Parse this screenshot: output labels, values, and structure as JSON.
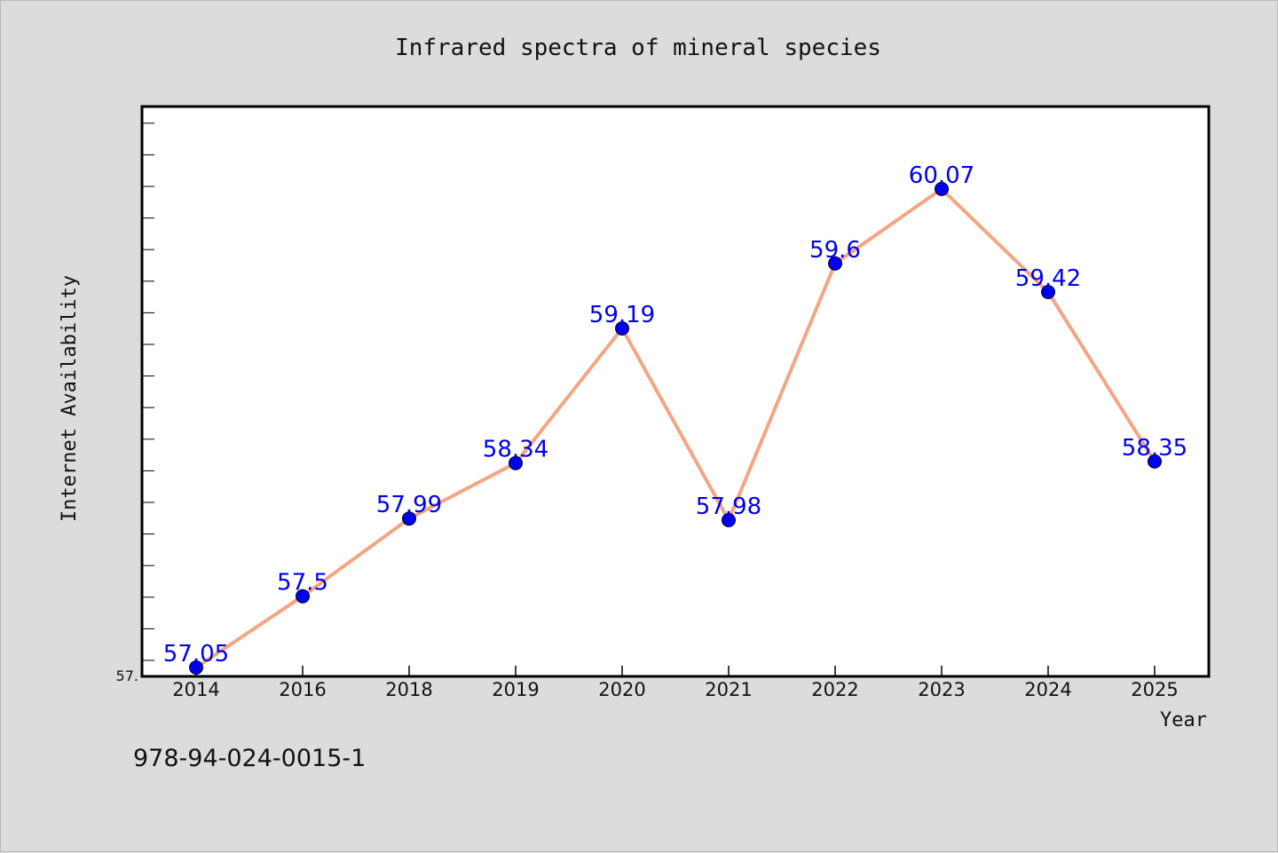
{
  "chart_data": {
    "type": "line",
    "title": "Infrared spectra of mineral species",
    "xlabel": "Year",
    "ylabel": "Internet Availability",
    "categories": [
      "2014",
      "2016",
      "2018",
      "2019",
      "2020",
      "2021",
      "2022",
      "2023",
      "2024",
      "2025"
    ],
    "series": [
      {
        "values": [
          57.05,
          57.5,
          57.99,
          58.34,
          59.19,
          57.98,
          59.6,
          60.07,
          59.42,
          58.35
        ],
        "labels": [
          "57.05",
          "57.5",
          "57.99",
          "58.34",
          "59.19",
          "57.98",
          "59.6",
          "60.07",
          "59.42",
          "58.35"
        ]
      }
    ],
    "ylim": [
      57.0,
      60.6
    ],
    "ytick_labels": [
      "57."
    ],
    "grid": false,
    "line_color": "#f4a582",
    "marker_color": "#0000ee",
    "label_color": "#0000ee"
  },
  "footer": {
    "code": "978-94-024-0015-1"
  }
}
